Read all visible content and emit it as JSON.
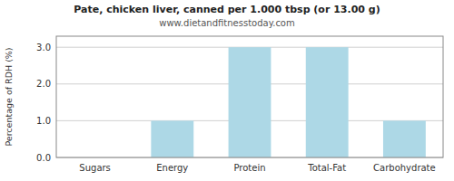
{
  "chart_data": {
    "type": "bar",
    "title": "Pate, chicken liver, canned per 1.000 tbsp (or 13.00 g)",
    "subtitle": "www.dietandfitnesstoday.com",
    "categories": [
      "Sugars",
      "Energy",
      "Protein",
      "Total-Fat",
      "Carbohydrate"
    ],
    "values": [
      0.0,
      1.0,
      3.0,
      3.0,
      1.0
    ],
    "color": "#add8e6",
    "y_label": "Percentage of RDH (%)",
    "ylim": [
      0,
      3.3
    ],
    "yticks": [
      {
        "value": 0.0,
        "label": "0.0"
      },
      {
        "value": 1.0,
        "label": "1.0"
      },
      {
        "value": 2.0,
        "label": "2.0"
      },
      {
        "value": 3.0,
        "label": "3.0"
      }
    ],
    "grid": true
  }
}
